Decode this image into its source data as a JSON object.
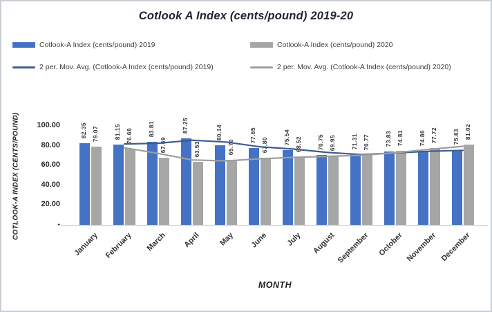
{
  "frame": {
    "background": "#ffffff",
    "border_color": "#c9ced5"
  },
  "title": "Cotlook A Index (cents/pound) 2019-20",
  "colors": {
    "bar_2019": "#4472C4",
    "bar_2020": "#A6A6A6",
    "line_2019": "#3E5C8F",
    "line_2020": "#9E9E9E",
    "title_text": "#1F2430",
    "axis_text": "#262626",
    "value_label_text": "#3A3A3A"
  },
  "legend": {
    "items": [
      {
        "label": "Cotlook-A Index (cents/pound) 2019",
        "marker": "bar",
        "color": "#4472C4"
      },
      {
        "label": "Cotlook-A Index (cents/pound) 2020",
        "marker": "bar",
        "color": "#A6A6A6"
      },
      {
        "label": "2 per. Mov. Avg. (Cotlook-A Index (cents/pound) 2019)",
        "marker": "line",
        "color": "#3E5C8F"
      },
      {
        "label": "2 per. Mov. Avg. (Cotlook-A Index (cents/pound) 2020)",
        "marker": "line",
        "color": "#9E9E9E"
      }
    ]
  },
  "chart_data": {
    "type": "bar",
    "title": "Cotlook A Index (cents/pound) 2019-20",
    "categories": [
      "January",
      "February",
      "March",
      "April",
      "May",
      "June",
      "July",
      "August",
      "September",
      "October",
      "November",
      "December"
    ],
    "series": [
      {
        "name": "Cotlook-A Index (cents/pound) 2019",
        "year": "2019",
        "color": "#4472C4",
        "values": [
          82.35,
          81.15,
          83.81,
          87.25,
          80.14,
          77.65,
          75.54,
          70.75,
          71.31,
          73.83,
          74.86,
          75.83
        ]
      },
      {
        "name": "Cotlook-A Index (cents/pound) 2020",
        "year": "2020",
        "color": "#A6A6A6",
        "values": [
          79.07,
          76.68,
          67.69,
          63.53,
          65.7,
          67.8,
          68.52,
          69.95,
          70.77,
          74.81,
          77.72,
          81.02
        ]
      }
    ],
    "trendlines": [
      {
        "name": "2 per. Mov. Avg. (Cotlook-A Index (cents/pound) 2019)",
        "window": 2,
        "of_series": 0,
        "color": "#3E5C8F"
      },
      {
        "name": "2 per. Mov. Avg. (Cotlook-A Index (cents/pound) 2020)",
        "window": 2,
        "of_series": 1,
        "color": "#9E9E9E"
      }
    ],
    "xlabel": "MONTH",
    "ylabel": "COTLOOK-A INDEX (CENTS/POUND)",
    "ylim": [
      0,
      100
    ],
    "ytick_step": 20,
    "ytick_labels": [
      "-",
      "20.00",
      "40.00",
      "60.00",
      "80.00",
      "100.00"
    ],
    "value_label_format": "0.00",
    "grid": false,
    "legend_position": "top"
  }
}
